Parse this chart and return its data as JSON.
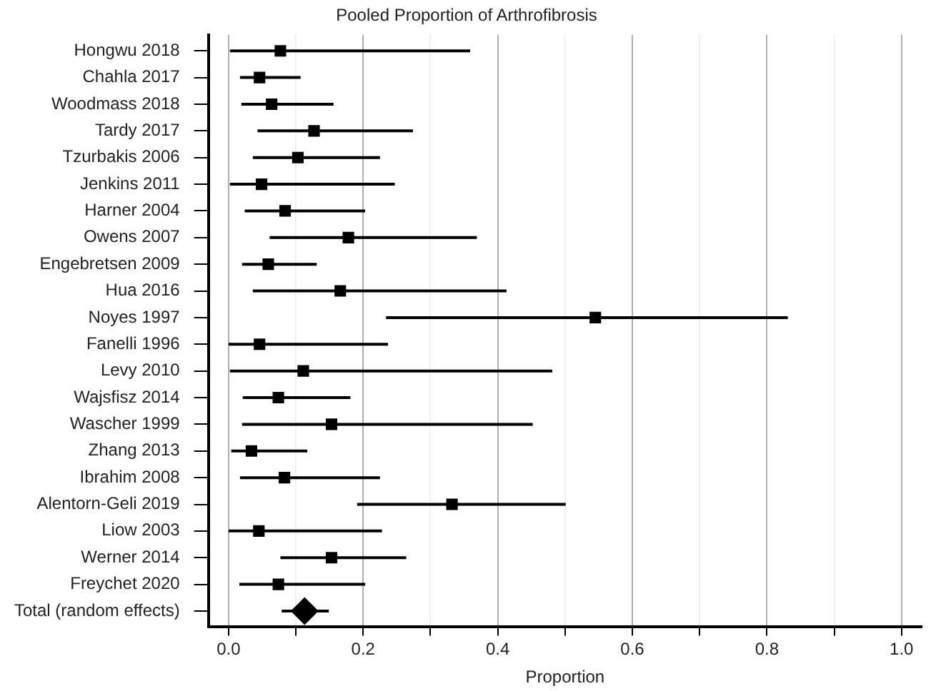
{
  "chart_data": {
    "type": "scatter",
    "orientation": "horizontal",
    "title": "Pooled Proportion of Arthrofibrosis",
    "xlabel": "Proportion",
    "categories": [
      "Hongwu 2018",
      "Chahla 2017",
      "Woodmass 2018",
      "Tardy 2017",
      "Tzurbakis 2006",
      "Jenkins 2011",
      "Harner 2004",
      "Owens 2007",
      "Engebretsen 2009",
      "Hua 2016",
      "Noyes 1997",
      "Fanelli 1996",
      "Levy 2010",
      "Wajsfisz 2014",
      "Wascher 1999",
      "Zhang 2013",
      "Ibrahim 2008",
      "Alentorn-Geli 2019",
      "Liow 2003",
      "Werner 2014",
      "Freychet 2020",
      "Total (random effects)"
    ],
    "series": [
      {
        "color": "#000000",
        "marker": "square",
        "values": [
          0.077,
          0.046,
          0.064,
          0.127,
          0.103,
          0.049,
          0.084,
          0.178,
          0.059,
          0.166,
          0.545,
          0.046,
          0.111,
          0.074,
          0.153,
          0.034,
          0.083,
          0.332,
          0.045,
          0.153,
          0.074,
          null
        ],
        "errors": [
          [
            0.002,
            0.359
          ],
          [
            0.017,
            0.107
          ],
          [
            0.019,
            0.156
          ],
          [
            0.043,
            0.274
          ],
          [
            0.036,
            0.225
          ],
          [
            0.002,
            0.247
          ],
          [
            0.024,
            0.203
          ],
          [
            0.061,
            0.369
          ],
          [
            0.02,
            0.131
          ],
          [
            0.036,
            0.413
          ],
          [
            0.234,
            0.831
          ],
          [
            0.0,
            0.237
          ],
          [
            0.002,
            0.481
          ],
          [
            0.021,
            0.181
          ],
          [
            0.02,
            0.452
          ],
          [
            0.004,
            0.117
          ],
          [
            0.017,
            0.225
          ],
          [
            0.191,
            0.501
          ],
          [
            0.0,
            0.228
          ],
          [
            0.077,
            0.264
          ],
          [
            0.016,
            0.203
          ],
          null
        ]
      },
      {
        "color": "#000000",
        "marker": "diamond",
        "values": [
          null,
          null,
          null,
          null,
          null,
          null,
          null,
          null,
          null,
          null,
          null,
          null,
          null,
          null,
          null,
          null,
          null,
          null,
          null,
          null,
          null,
          0.113
        ],
        "errors": [
          null,
          null,
          null,
          null,
          null,
          null,
          null,
          null,
          null,
          null,
          null,
          null,
          null,
          null,
          null,
          null,
          null,
          null,
          null,
          null,
          null,
          [
            0.079,
            0.149
          ]
        ]
      }
    ],
    "xlim": [
      -0.03,
      1.03
    ],
    "xticks": [
      {
        "value": 0,
        "label": "0.0"
      },
      {
        "value": 0.1,
        "label": null
      },
      {
        "value": 0.2,
        "label": "0.2"
      },
      {
        "value": 0.3,
        "label": null
      },
      {
        "value": 0.4,
        "label": "0.4"
      },
      {
        "value": 0.5,
        "label": null
      },
      {
        "value": 0.6,
        "label": "0.6"
      },
      {
        "value": 0.7,
        "label": null
      },
      {
        "value": 0.8,
        "label": "0.8"
      },
      {
        "value": 0.9,
        "label": null
      },
      {
        "value": 1,
        "label": "1.0"
      }
    ],
    "grid": "x",
    "legend": false
  }
}
